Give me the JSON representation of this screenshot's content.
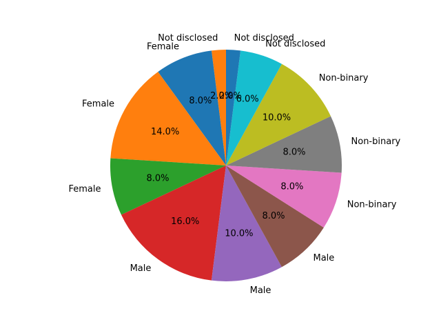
{
  "chart_data": {
    "type": "pie",
    "start_angle_deg": 90,
    "direction": "counterclockwise",
    "slices": [
      {
        "label": "Not disclosed",
        "value": 2.0,
        "pct_label": "2.0%",
        "color": "#ff7f0e"
      },
      {
        "label": "Female",
        "value": 8.0,
        "pct_label": "8.0%",
        "color": "#1f77b4"
      },
      {
        "label": "Female",
        "value": 14.0,
        "pct_label": "14.0%",
        "color": "#ff7f0e"
      },
      {
        "label": "Female",
        "value": 8.0,
        "pct_label": "8.0%",
        "color": "#2ca02c"
      },
      {
        "label": "Male",
        "value": 16.0,
        "pct_label": "16.0%",
        "color": "#d62728"
      },
      {
        "label": "Male",
        "value": 10.0,
        "pct_label": "10.0%",
        "color": "#9467bd"
      },
      {
        "label": "Male",
        "value": 8.0,
        "pct_label": "8.0%",
        "color": "#8c564b"
      },
      {
        "label": "Non-binary",
        "value": 8.0,
        "pct_label": "8.0%",
        "color": "#e377c2"
      },
      {
        "label": "Non-binary",
        "value": 8.0,
        "pct_label": "8.0%",
        "color": "#7f7f7f"
      },
      {
        "label": "Non-binary",
        "value": 10.0,
        "pct_label": "10.0%",
        "color": "#bcbd22"
      },
      {
        "label": "Not disclosed",
        "value": 6.0,
        "pct_label": "6.0%",
        "color": "#17becf"
      },
      {
        "label": "Not disclosed",
        "value": 2.0,
        "pct_label": "2.0%",
        "color": "#1f77b4"
      }
    ]
  }
}
